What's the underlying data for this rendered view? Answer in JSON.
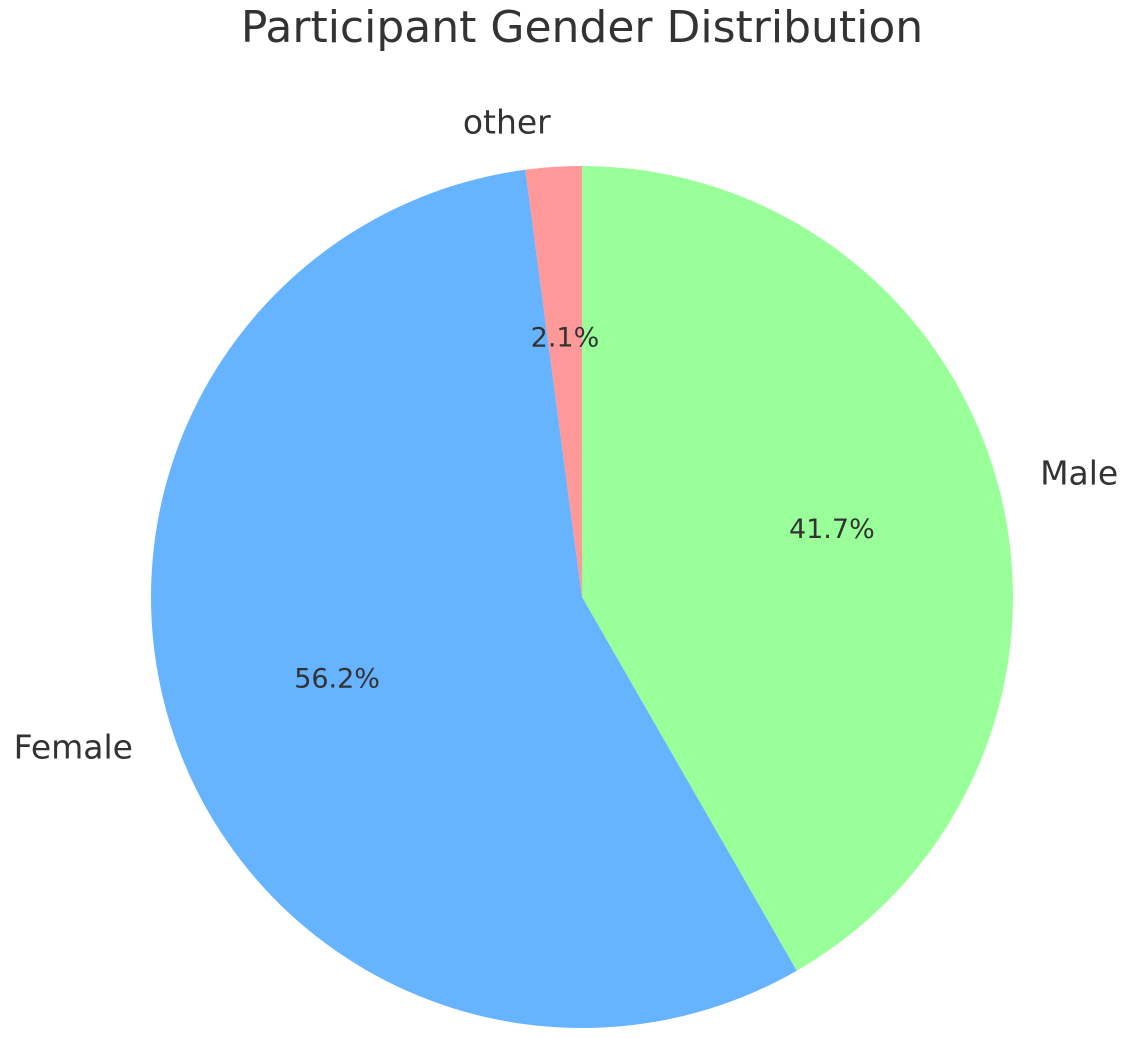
{
  "chart_data": {
    "type": "pie",
    "title": "Participant Gender Distribution",
    "categories": [
      "Male",
      "Female",
      "other"
    ],
    "values": [
      41.7,
      56.2,
      2.1
    ],
    "percent_labels": [
      "41.7%",
      "56.2%",
      "2.1%"
    ],
    "colors": [
      "#99ff99",
      "#66b3ff",
      "#ff9999"
    ],
    "start_angle_deg": 90,
    "direction": "clockwise",
    "legend": "none"
  }
}
